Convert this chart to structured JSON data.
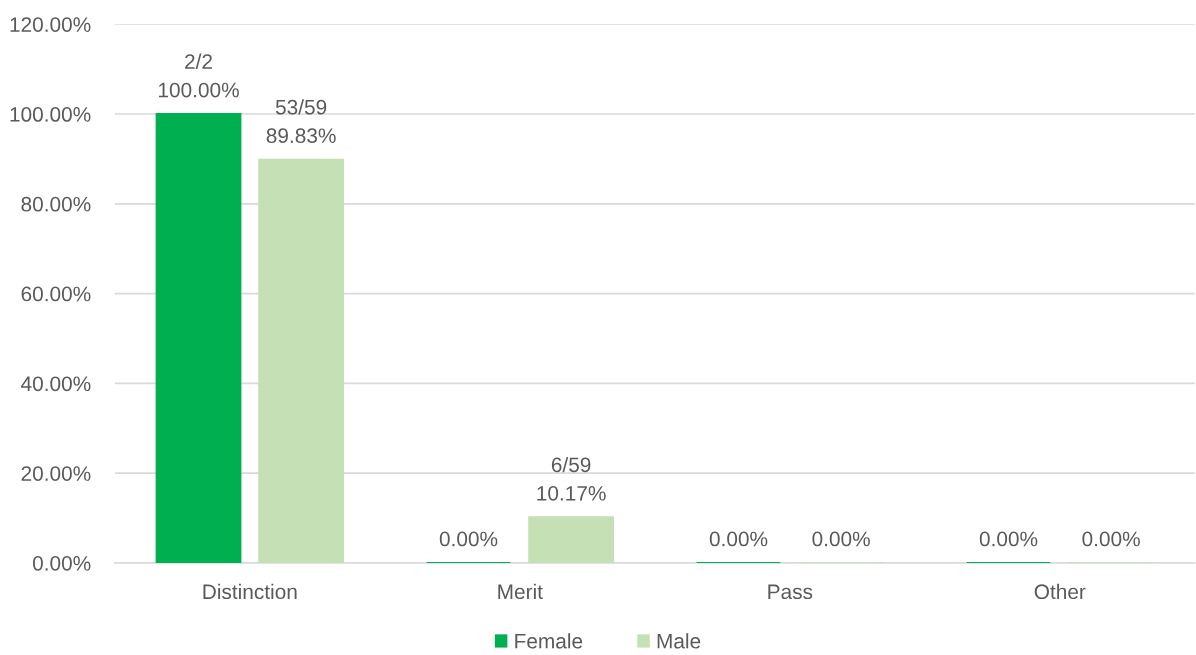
{
  "chart_data": {
    "type": "bar",
    "categories": [
      "Distinction",
      "Merit",
      "Pass",
      "Other"
    ],
    "series": [
      {
        "name": "Female",
        "color": "#00b050",
        "values": [
          100,
          0,
          0,
          0
        ],
        "value_labels": [
          "2/2\n100.00%",
          "0.00%",
          "0.00%",
          "0.00%"
        ]
      },
      {
        "name": "Male",
        "color": "#c5e0b4",
        "values": [
          89.83,
          10.17,
          0,
          0
        ],
        "value_labels": [
          "53/59\n89.83%",
          "6/59\n10.17%",
          "0.00%",
          "0.00%"
        ]
      }
    ],
    "ylim": [
      0,
      120
    ],
    "yticks": [
      {
        "value": 0,
        "label": "0.00%"
      },
      {
        "value": 20,
        "label": "20.00%"
      },
      {
        "value": 40,
        "label": "40.00%"
      },
      {
        "value": 60,
        "label": "60.00%"
      },
      {
        "value": 80,
        "label": "80.00%"
      },
      {
        "value": 100,
        "label": "100.00%"
      },
      {
        "value": 120,
        "label": "120.00%"
      }
    ],
    "grid": "y",
    "legend": "bottom"
  }
}
